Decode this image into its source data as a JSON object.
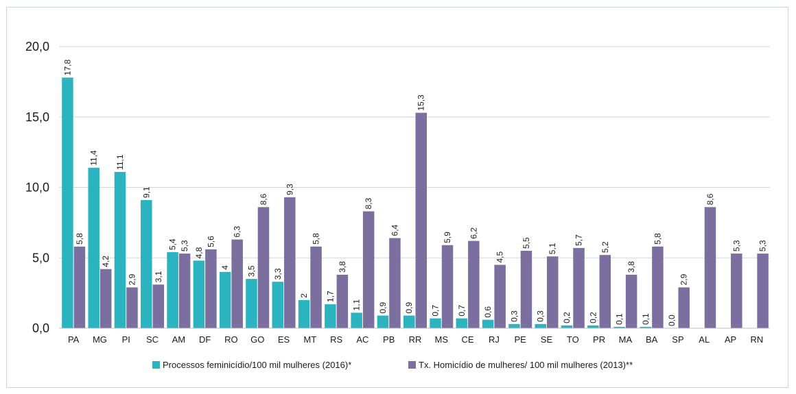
{
  "chart_data": {
    "type": "bar",
    "categories": [
      "PA",
      "MG",
      "PI",
      "SC",
      "AM",
      "DF",
      "RO",
      "GO",
      "ES",
      "MT",
      "RS",
      "AC",
      "PB",
      "RR",
      "MS",
      "CE",
      "RJ",
      "PE",
      "SE",
      "TO",
      "PR",
      "MA",
      "BA",
      "SP",
      "AL",
      "AP",
      "RN"
    ],
    "series": [
      {
        "name": "Processos feminicídio/100 mil mulheres (2016)*",
        "color": "#2bb3c0",
        "values": [
          17.8,
          11.4,
          11.1,
          9.1,
          5.4,
          4.8,
          4,
          3.5,
          3.3,
          2,
          1.7,
          1.1,
          0.9,
          0.9,
          0.7,
          0.7,
          0.6,
          0.3,
          0.3,
          0.2,
          0.2,
          0.1,
          0.1,
          0.0,
          null,
          null,
          null
        ],
        "labels": [
          "17,8",
          "11,4",
          "11,1",
          "9,1",
          "5,4",
          "4,8",
          "4",
          "3,5",
          "3,3",
          "2",
          "1,7",
          "1,1",
          "0,9",
          "0,9",
          "0,7",
          "0,7",
          "0,6",
          "0,3",
          "0,3",
          "0,2",
          "0,2",
          "0,1",
          "0,1",
          "0,0",
          "",
          "",
          ""
        ]
      },
      {
        "name": "Tx. Homicídio de mulheres/ 100 mil mulheres (2013)**",
        "color": "#7b6f9f",
        "values": [
          5.8,
          4.2,
          2.9,
          3.1,
          5.3,
          5.6,
          6.3,
          8.6,
          9.3,
          5.8,
          3.8,
          8.3,
          6.4,
          15.3,
          5.9,
          6.2,
          4.5,
          5.5,
          5.1,
          5.7,
          5.2,
          3.8,
          5.8,
          2.9,
          8.6,
          5.3,
          5.3
        ],
        "labels": [
          "5,8",
          "4,2",
          "2,9",
          "3,1",
          "5,3",
          "5,6",
          "6,3",
          "8,6",
          "9,3",
          "5,8",
          "3,8",
          "8,3",
          "6,4",
          "15,3",
          "5,9",
          "6,2",
          "4,5",
          "5,5",
          "5,1",
          "5,7",
          "5,2",
          "3,8",
          "5,8",
          "2,9",
          "8,6",
          "5,3",
          "5,3"
        ]
      }
    ],
    "yticks": [
      "0,0",
      "5,0",
      "10,0",
      "15,0",
      "20,0"
    ],
    "ytick_values": [
      0,
      5,
      10,
      15,
      20
    ],
    "ylim": [
      0,
      20
    ],
    "grid": true,
    "legend_position": "bottom"
  }
}
